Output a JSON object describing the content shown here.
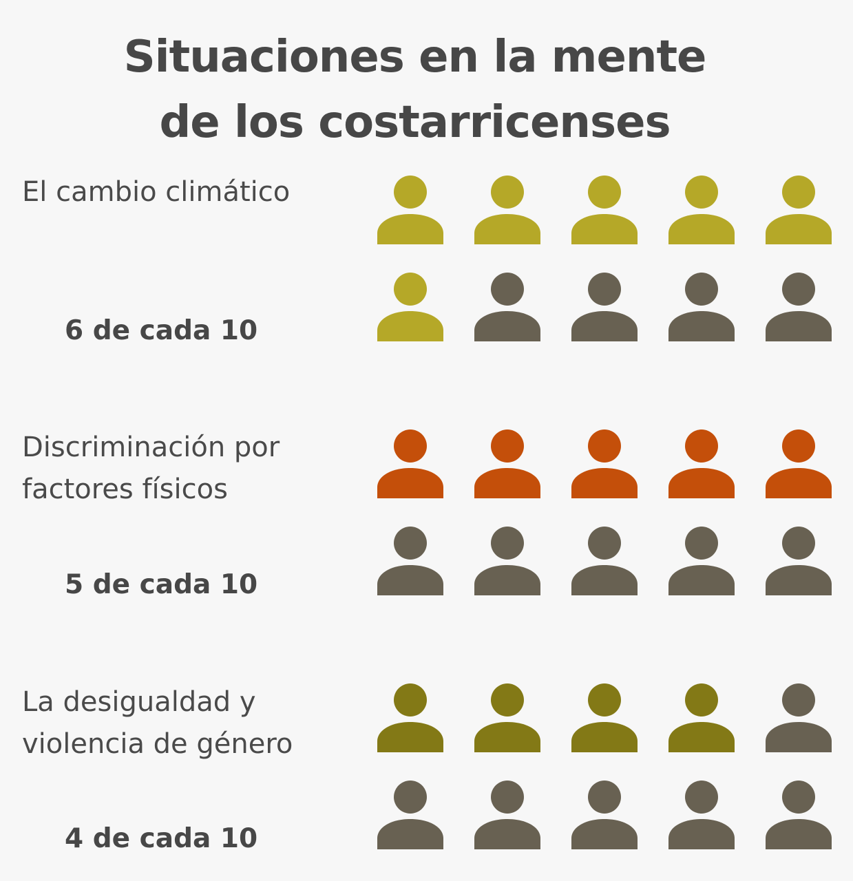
{
  "title": {
    "line1": "Situaciones en la mente",
    "line2": "de los costarricenses"
  },
  "colors": {
    "inactive": "#686152"
  },
  "icon": "person-icon",
  "chart_data": {
    "type": "pictogram",
    "title": "Situaciones en la mente de los costarricenses",
    "icons_per_group": 10,
    "groups": [
      {
        "label_lines": [
          "El cambio climático"
        ],
        "ratio_text": "6 de cada 10",
        "value": 6,
        "total": 10,
        "color": "#b5a828"
      },
      {
        "label_lines": [
          "Discriminación por",
          "factores físicos"
        ],
        "ratio_text": "5 de cada 10",
        "value": 5,
        "total": 10,
        "color": "#c44f0a"
      },
      {
        "label_lines": [
          "La desigualdad  y",
          "violencia de género"
        ],
        "ratio_text": "4 de cada 10",
        "value": 4,
        "total": 10,
        "color": "#837916"
      }
    ]
  }
}
